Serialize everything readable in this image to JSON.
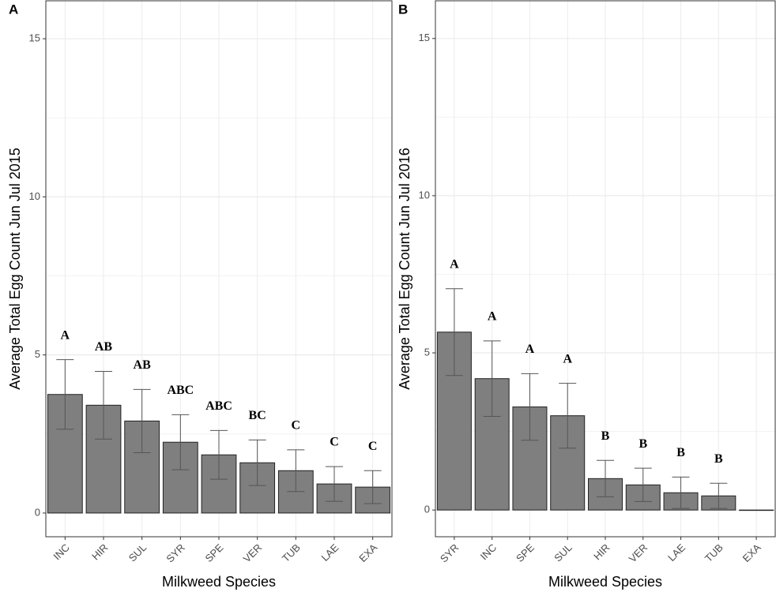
{
  "chart_data": [
    {
      "type": "bar",
      "panel": "A",
      "ylabel": "Average Total Egg Count Jun Jul 2015",
      "xlabel": "Milkweed Species",
      "categories": [
        "INC",
        "HIR",
        "SUL",
        "SYR",
        "SPE",
        "VER",
        "TUB",
        "LAE",
        "EXA"
      ],
      "values": [
        3.75,
        3.41,
        2.91,
        2.24,
        1.84,
        1.59,
        1.34,
        0.92,
        0.82
      ],
      "errors": [
        1.1,
        1.07,
        1.0,
        0.87,
        0.77,
        0.72,
        0.66,
        0.55,
        0.52
      ],
      "annotations": [
        "A",
        "AB",
        "AB",
        "ABC",
        "ABC",
        "BC",
        "C",
        "C",
        "C"
      ],
      "color": "#7f7f7f",
      "ylim": [
        -0.75,
        16.2
      ],
      "yticks": [
        0,
        5,
        10,
        15
      ],
      "grid": true
    },
    {
      "type": "bar",
      "panel": "B",
      "ylabel": "Average Total Egg Count Jun Jul 2016",
      "xlabel": "Milkweed Species",
      "categories": [
        "SYR",
        "INC",
        "SPE",
        "SUL",
        "HIR",
        "VER",
        "LAE",
        "TUB",
        "EXA"
      ],
      "values": [
        5.66,
        4.18,
        3.28,
        3.0,
        1.0,
        0.8,
        0.55,
        0.45,
        0
      ],
      "errors": [
        1.38,
        1.2,
        1.06,
        1.03,
        0.58,
        0.53,
        0.5,
        0.4,
        null
      ],
      "annotations": [
        "A",
        "A",
        "A",
        "A",
        "B",
        "B",
        "B",
        "B"
      ],
      "color": "#7f7f7f",
      "ylim": [
        -0.85,
        16.2
      ],
      "yticks": [
        0,
        5,
        10,
        15
      ],
      "grid": true
    }
  ]
}
